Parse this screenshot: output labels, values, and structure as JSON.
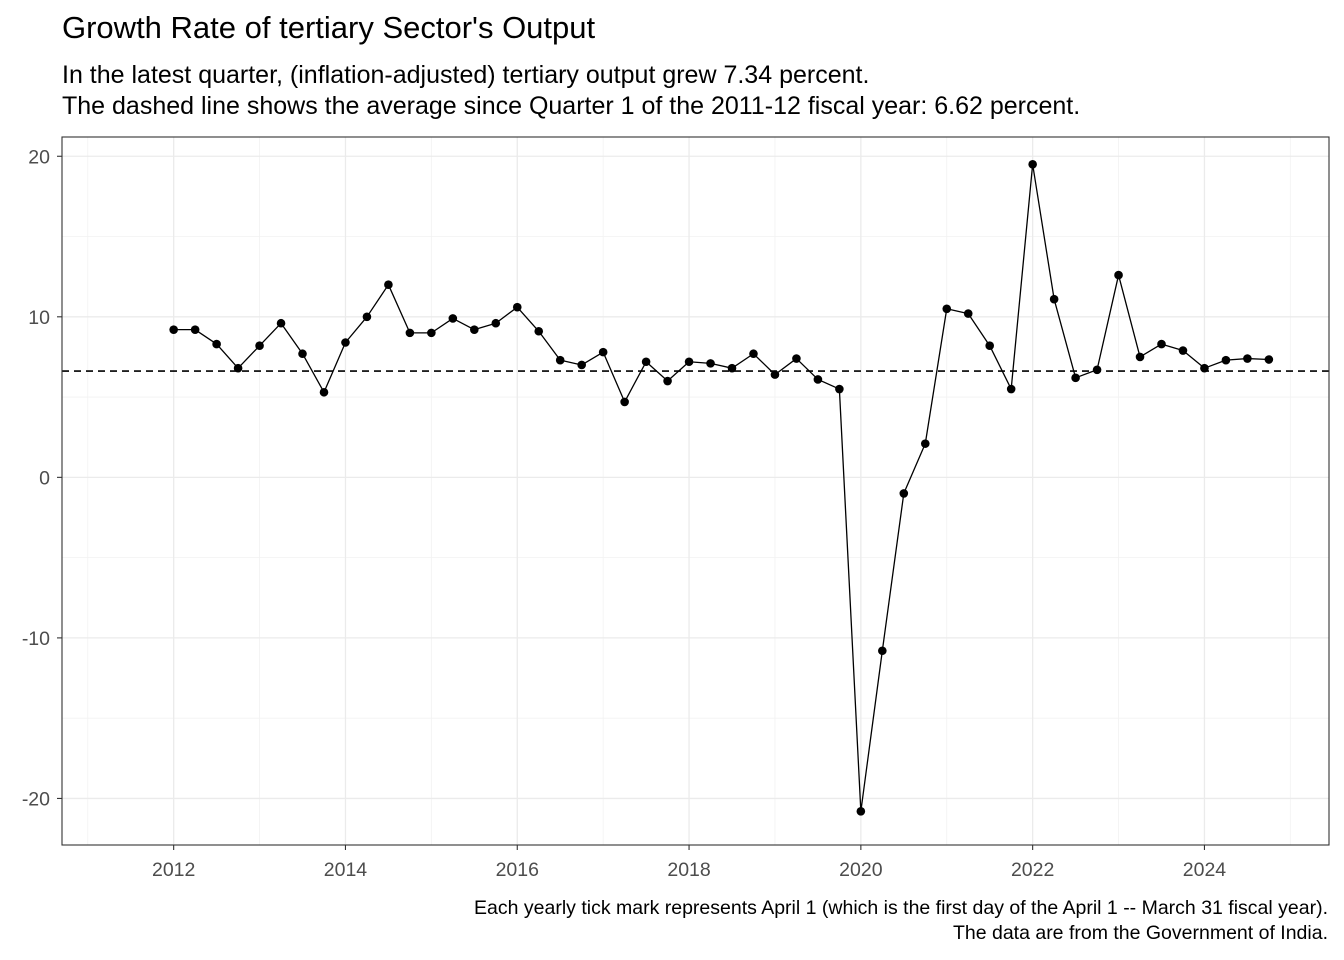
{
  "title": "Growth Rate of tertiary Sector's Output",
  "subtitle_line1": "In the latest quarter, (inflation-adjusted) tertiary output grew 7.34 percent.",
  "subtitle_line2": "The dashed line shows the average since Quarter 1 of the 2011-12 fiscal year: 6.62 percent.",
  "caption_line1": "Each yearly tick mark represents April 1 (which is the first day of the April 1 -- March 31 fiscal year).",
  "caption_line2": "The data are from the Government of India.",
  "chart_data": {
    "type": "line",
    "title": "Growth Rate of tertiary Sector's Output",
    "xlabel": "",
    "ylabel": "",
    "xlim": [
      2010.7,
      2025.45
    ],
    "ylim": [
      -22.9,
      21.2
    ],
    "x_ticks": [
      2012,
      2014,
      2016,
      2018,
      2020,
      2022,
      2024
    ],
    "y_ticks": [
      -20,
      -10,
      0,
      10,
      20
    ],
    "grid": true,
    "reference_line": {
      "style": "dashed",
      "value": 6.62
    },
    "series": [
      {
        "markers": true,
        "x": [
          2012,
          2012.25,
          2012.5,
          2012.75,
          2013,
          2013.25,
          2013.5,
          2013.75,
          2014,
          2014.25,
          2014.5,
          2014.75,
          2015,
          2015.25,
          2015.5,
          2015.75,
          2016,
          2016.25,
          2016.5,
          2016.75,
          2017,
          2017.25,
          2017.5,
          2017.75,
          2018,
          2018.25,
          2018.5,
          2018.75,
          2019,
          2019.25,
          2019.5,
          2019.75,
          2020,
          2020.25,
          2020.5,
          2020.75,
          2021,
          2021.25,
          2021.5,
          2021.75,
          2022,
          2022.25,
          2022.5,
          2022.75,
          2023,
          2023.25,
          2023.5,
          2023.75,
          2024,
          2024.25,
          2024.5,
          2024.75
        ],
        "y": [
          9.2,
          9.2,
          8.3,
          6.8,
          8.2,
          9.6,
          7.7,
          5.3,
          8.4,
          10.0,
          12.0,
          9.0,
          9.0,
          9.9,
          9.2,
          9.6,
          10.6,
          9.1,
          7.3,
          7.0,
          7.8,
          4.7,
          7.2,
          6.0,
          7.2,
          7.1,
          6.8,
          7.7,
          6.4,
          7.4,
          6.1,
          5.5,
          -20.8,
          -10.8,
          -1.0,
          2.1,
          10.5,
          10.2,
          8.2,
          5.5,
          19.5,
          11.1,
          6.2,
          6.7,
          12.6,
          7.5,
          8.3,
          7.9,
          6.8,
          7.3,
          7.4,
          7.34
        ]
      }
    ]
  }
}
